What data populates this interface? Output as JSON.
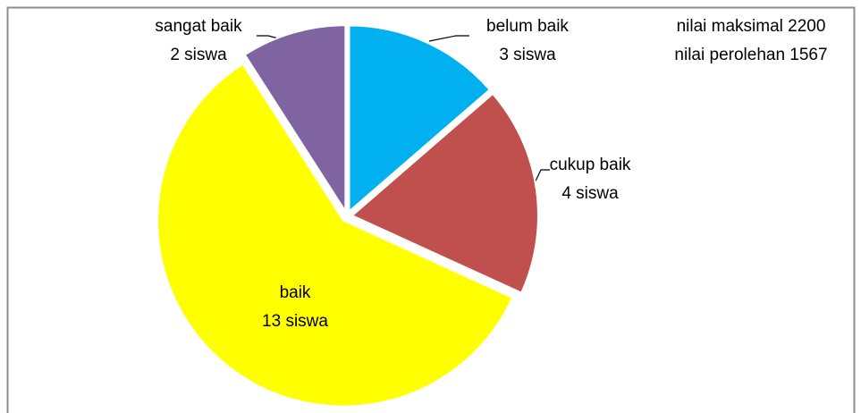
{
  "chart_data": {
    "type": "pie",
    "categories": [
      "belum baik",
      "cukup baik",
      "baik",
      "sangat baik"
    ],
    "values": [
      3,
      4,
      13,
      2
    ],
    "value_labels": [
      "3 siswa",
      "4 siswa",
      "13 siswa",
      "2 siswa"
    ],
    "colors": [
      "#00b0f0",
      "#c0504d",
      "#ffff00",
      "#8064a2"
    ],
    "annotations": [
      "nilai maksimal 2200",
      "nilai perolehan 1567"
    ]
  }
}
